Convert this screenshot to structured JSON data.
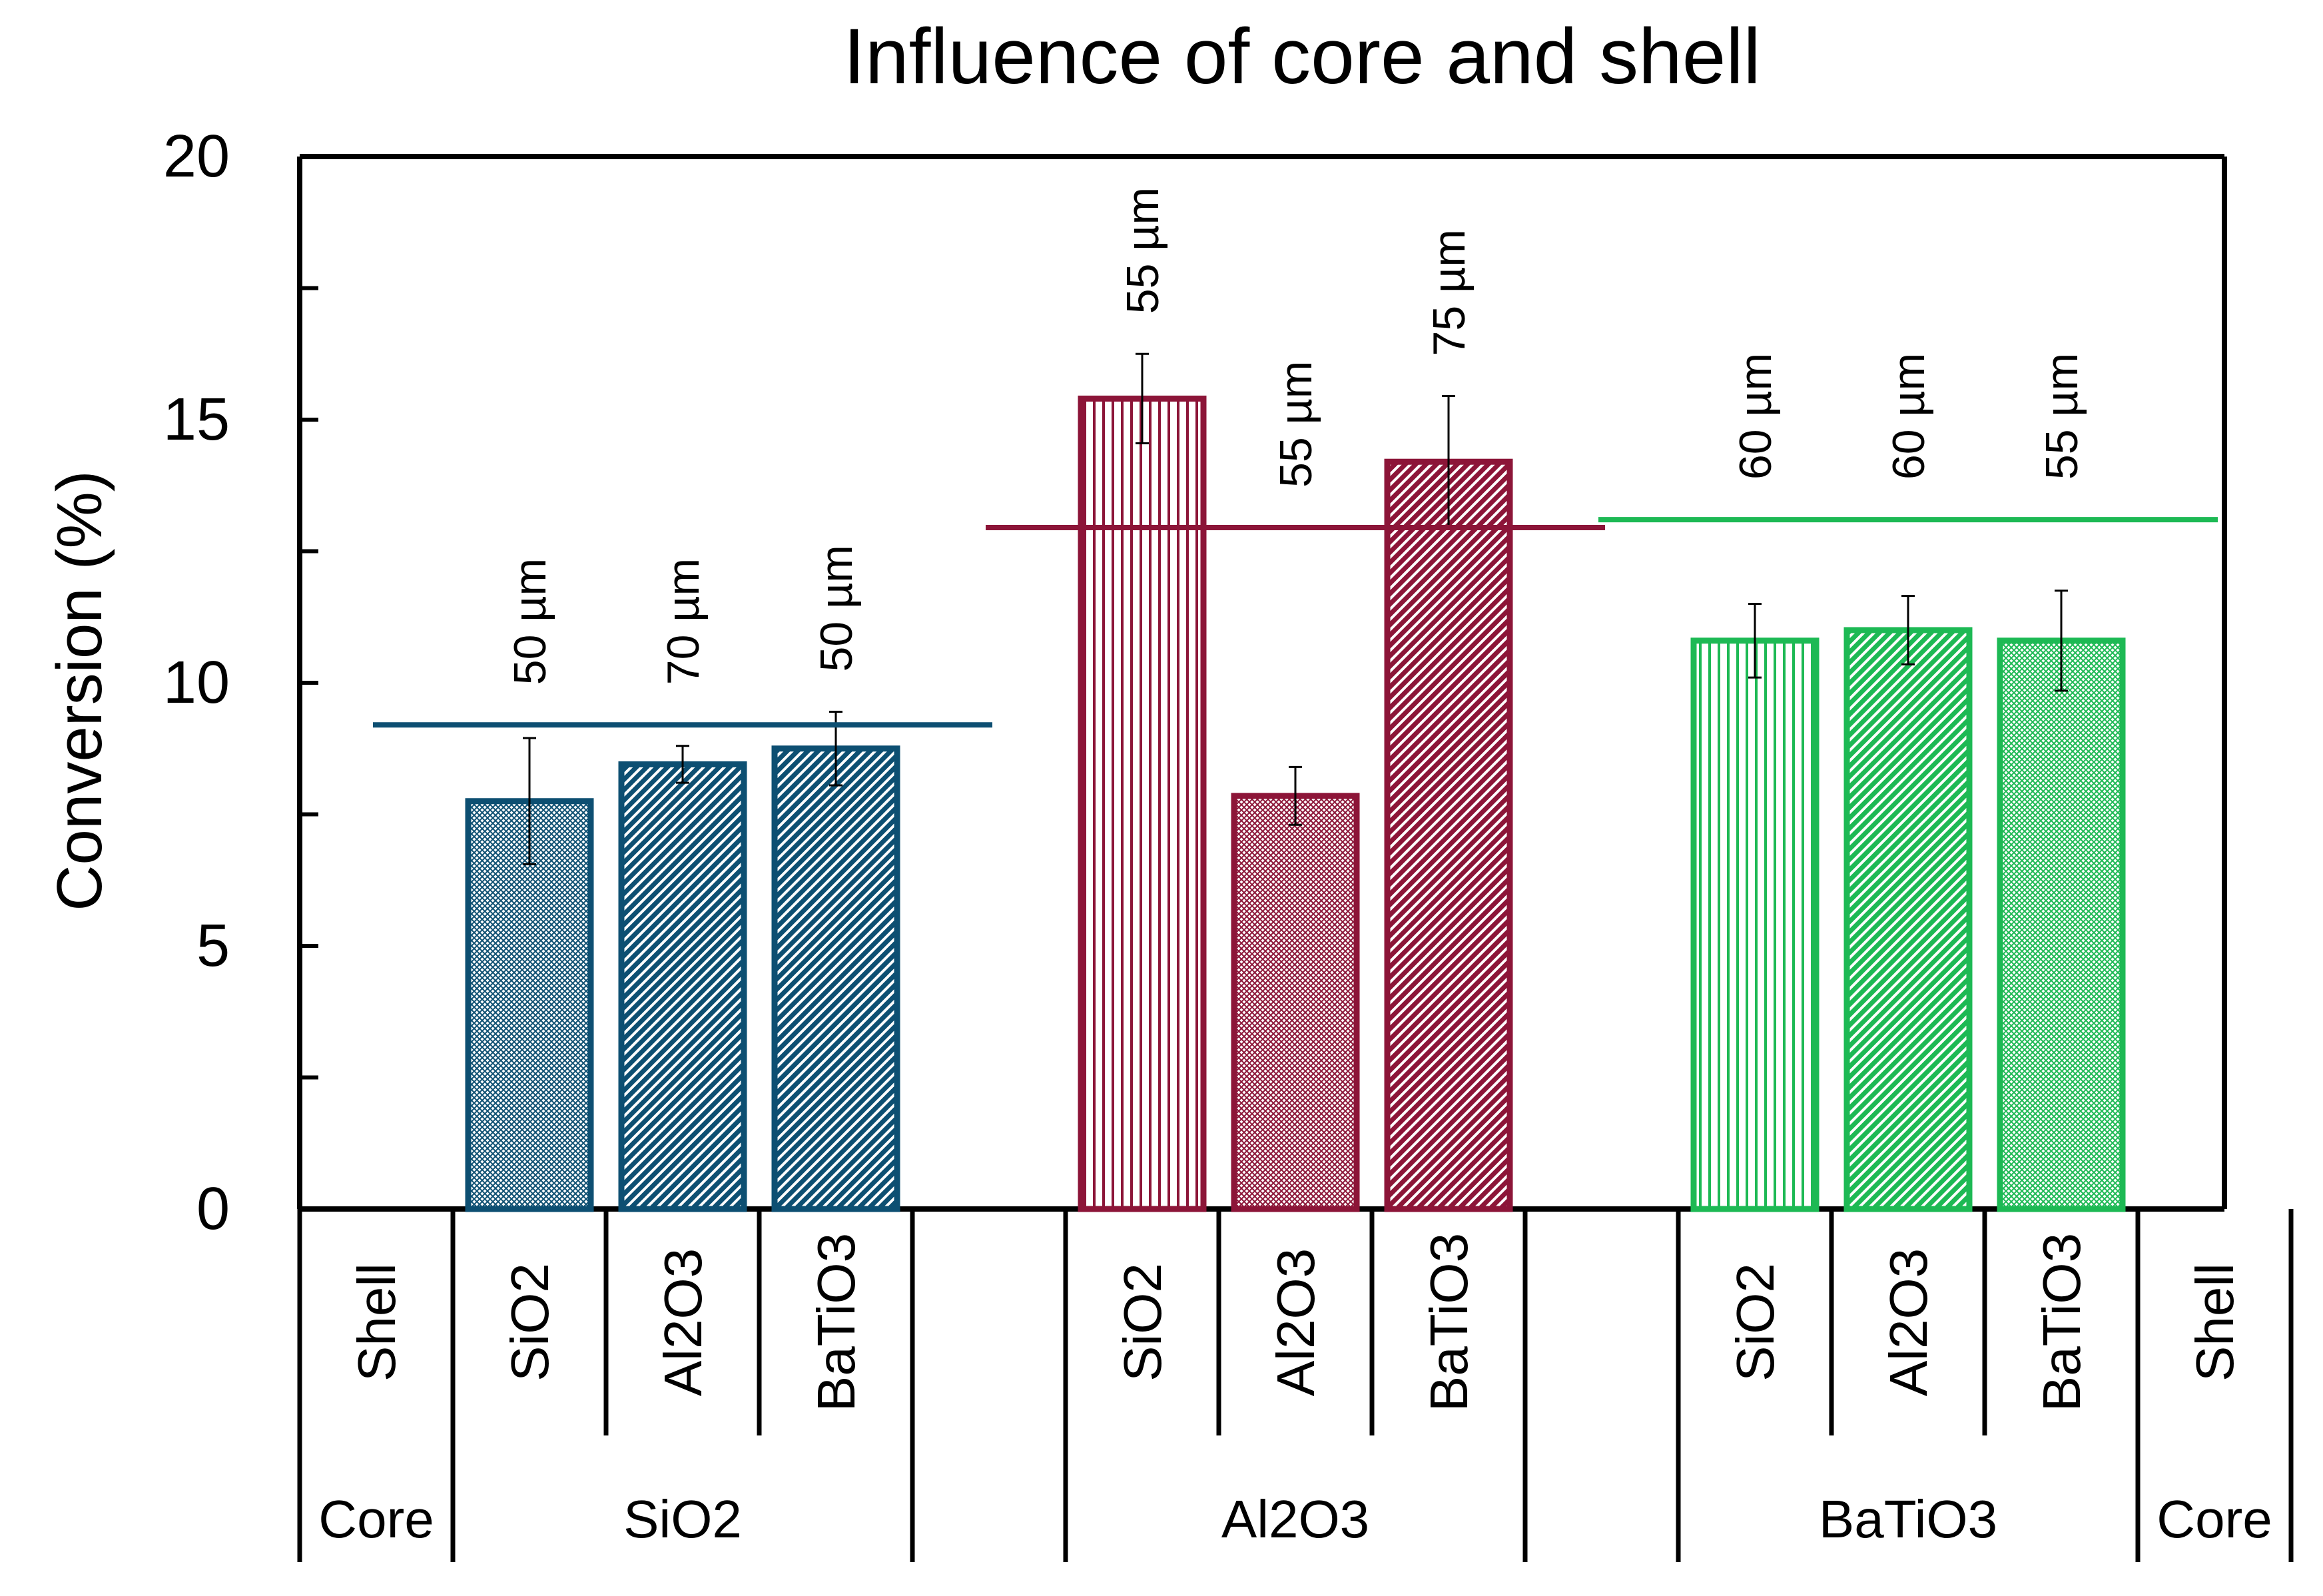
{
  "chart_data": {
    "type": "bar",
    "title": "Influence of core and shell",
    "ylabel": "Conversion (%)",
    "xlabel": "",
    "ylim": [
      0,
      20
    ],
    "yticks": [
      0,
      5,
      10,
      15,
      20
    ],
    "colors": {
      "SiO2": "#0d4f72",
      "Al2O3": "#8c1538",
      "BaTiO3": "#1db954"
    },
    "row_labels": {
      "shell": "Shell",
      "core": "Core"
    },
    "groups": [
      {
        "core": "SiO2",
        "average": 9.2,
        "bars": [
          {
            "shell": "SiO2",
            "value": 7.75,
            "error": 1.2,
            "annotation": "50 µm",
            "pattern": "crosshatch"
          },
          {
            "shell": "Al2O3",
            "value": 8.45,
            "error": 0.35,
            "annotation": "70 µm",
            "pattern": "diagonal"
          },
          {
            "shell": "BaTiO3",
            "value": 8.75,
            "error": 0.7,
            "annotation": "50 µm",
            "pattern": "diagonal"
          }
        ]
      },
      {
        "core": "Al2O3",
        "average": 12.95,
        "bars": [
          {
            "shell": "SiO2",
            "value": 15.4,
            "error": 0.85,
            "annotation": "55 µm",
            "pattern": "vertical"
          },
          {
            "shell": "Al2O3",
            "value": 7.85,
            "error": 0.55,
            "annotation": "55 µm",
            "pattern": "crosshatch"
          },
          {
            "shell": "BaTiO3",
            "value": 14.2,
            "error": 1.25,
            "annotation": "75 µm",
            "pattern": "diagonal"
          }
        ]
      },
      {
        "core": "BaTiO3",
        "average": 13.1,
        "bars": [
          {
            "shell": "SiO2",
            "value": 10.8,
            "error": 0.7,
            "annotation": "60 µm",
            "pattern": "vertical"
          },
          {
            "shell": "Al2O3",
            "value": 11.0,
            "error": 0.65,
            "annotation": "60 µm",
            "pattern": "diagonal"
          },
          {
            "shell": "BaTiO3",
            "value": 10.8,
            "error": 0.95,
            "annotation": "55 µm",
            "pattern": "crosshatch"
          }
        ]
      }
    ]
  }
}
